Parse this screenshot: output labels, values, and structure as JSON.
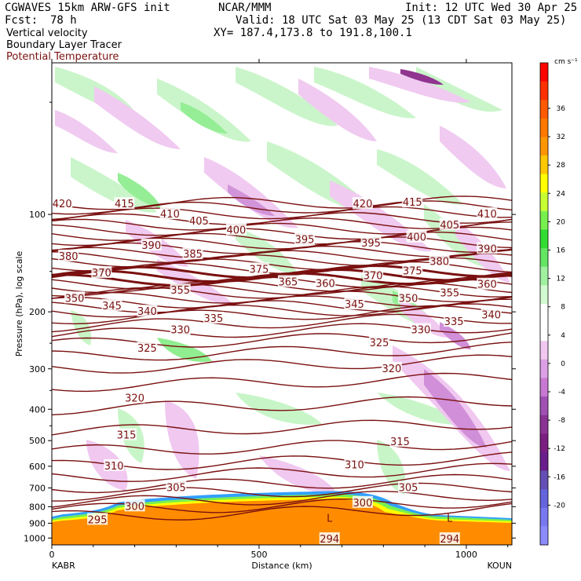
{
  "header": {
    "model": "CGWAVES 15km ARW-GFS init",
    "org": "NCAR/MMM",
    "init": "Init: 12 UTC Wed 30 Apr 25",
    "fcst_label": "Fcst:",
    "fcst_value": "78 h",
    "valid": "Valid: 18 UTC Sat 03 May 25 (13 CDT Sat 03 May 25)",
    "xy": "XY= 187.4,173.8 to 191.8,100.1",
    "field1": "Vertical velocity",
    "field2": "Boundary Layer Tracer",
    "field3": "Potential Temperature"
  },
  "colors": {
    "theta": "#7a1010",
    "terrain": "#ff8c00",
    "up_light": "#c8f5c8",
    "up_mid": "#90ee90",
    "up_strong": "#32cd32",
    "down_light": "#f0c8f0",
    "down_mid": "#d08fd8",
    "down_strong": "#8b2a8b"
  },
  "chart_data": {
    "type": "heatmap",
    "xlabel": "Distance (km)",
    "ylabel": "Pressure (hPa), log scale",
    "x_ticks": [
      "0",
      "500",
      "1000"
    ],
    "x_tick_values": [
      0,
      500,
      1000
    ],
    "x_end_labels": [
      "KABR",
      "KOUN"
    ],
    "xlim": [
      0,
      1110
    ],
    "y_ticks": [
      "100",
      "200",
      "300",
      "400",
      "500",
      "600",
      "700",
      "800",
      "900",
      "1000"
    ],
    "y_tick_values": [
      100,
      200,
      300,
      400,
      500,
      600,
      700,
      800,
      900,
      1000
    ],
    "ylim": [
      1050,
      34
    ],
    "y_scale": "log",
    "colorbar": {
      "units": "cm s⁻¹",
      "tick_labels": [
        "36",
        "32",
        "28",
        "24",
        "20",
        "16",
        "12",
        "8",
        "4",
        "0",
        "-4",
        "-8",
        "-12",
        "-16",
        "-20"
      ],
      "colors": [
        "#ff0000",
        "#ff3000",
        "#ff5a00",
        "#ff7800",
        "#ff9600",
        "#ffc800",
        "#ffff00",
        "#c8ff32",
        "#78f050",
        "#32dc32",
        "#64e664",
        "#a0f0a0",
        "#d2fad2",
        "#ffffff",
        "#ffffff",
        "#f0c8f0",
        "#dca0e6",
        "#c878d2",
        "#a050b4",
        "#8c3296",
        "#7a1e82",
        "#6a1e8c",
        "#6450b4",
        "#6464dc",
        "#7878f0",
        "#8c8cff"
      ]
    },
    "theta_contours": {
      "labels": [
        {
          "text": "420",
          "x": 25,
          "p": 93
        },
        {
          "text": "415",
          "x": 175,
          "p": 93
        },
        {
          "text": "410",
          "x": 285,
          "p": 100
        },
        {
          "text": "405",
          "x": 355,
          "p": 105
        },
        {
          "text": "400",
          "x": 445,
          "p": 112
        },
        {
          "text": "380",
          "x": 40,
          "p": 135
        },
        {
          "text": "390",
          "x": 240,
          "p": 125
        },
        {
          "text": "385",
          "x": 340,
          "p": 133
        },
        {
          "text": "395",
          "x": 610,
          "p": 120
        },
        {
          "text": "375",
          "x": 500,
          "p": 148
        },
        {
          "text": "370",
          "x": 120,
          "p": 152
        },
        {
          "text": "365",
          "x": 570,
          "p": 162
        },
        {
          "text": "360",
          "x": 660,
          "p": 164
        },
        {
          "text": "355",
          "x": 310,
          "p": 172
        },
        {
          "text": "350",
          "x": 55,
          "p": 182
        },
        {
          "text": "345",
          "x": 145,
          "p": 192
        },
        {
          "text": "340",
          "x": 230,
          "p": 200
        },
        {
          "text": "335",
          "x": 390,
          "p": 210
        },
        {
          "text": "330",
          "x": 310,
          "p": 228
        },
        {
          "text": "325",
          "x": 230,
          "p": 260
        },
        {
          "text": "320",
          "x": 200,
          "p": 370
        },
        {
          "text": "315",
          "x": 180,
          "p": 482
        },
        {
          "text": "310",
          "x": 150,
          "p": 600
        },
        {
          "text": "305",
          "x": 300,
          "p": 700
        },
        {
          "text": "300",
          "x": 200,
          "p": 800
        },
        {
          "text": "295",
          "x": 110,
          "p": 880
        },
        {
          "text": "420",
          "x": 750,
          "p": 93
        },
        {
          "text": "415",
          "x": 870,
          "p": 92
        },
        {
          "text": "410",
          "x": 1050,
          "p": 100
        },
        {
          "text": "405",
          "x": 960,
          "p": 108
        },
        {
          "text": "400",
          "x": 880,
          "p": 118
        },
        {
          "text": "395",
          "x": 770,
          "p": 123
        },
        {
          "text": "390",
          "x": 1050,
          "p": 128
        },
        {
          "text": "380",
          "x": 935,
          "p": 140
        },
        {
          "text": "375",
          "x": 870,
          "p": 150
        },
        {
          "text": "370",
          "x": 775,
          "p": 155
        },
        {
          "text": "360",
          "x": 1050,
          "p": 165
        },
        {
          "text": "355",
          "x": 960,
          "p": 175
        },
        {
          "text": "350",
          "x": 860,
          "p": 182
        },
        {
          "text": "345",
          "x": 730,
          "p": 190
        },
        {
          "text": "340",
          "x": 1060,
          "p": 205
        },
        {
          "text": "335",
          "x": 970,
          "p": 215
        },
        {
          "text": "330",
          "x": 890,
          "p": 228
        },
        {
          "text": "325",
          "x": 790,
          "p": 250
        },
        {
          "text": "320",
          "x": 820,
          "p": 300
        },
        {
          "text": "315",
          "x": 840,
          "p": 505
        },
        {
          "text": "310",
          "x": 730,
          "p": 595
        },
        {
          "text": "305",
          "x": 860,
          "p": 700
        },
        {
          "text": "300",
          "x": 750,
          "p": 780
        },
        {
          "text": "294",
          "x": 670,
          "p": 1010
        },
        {
          "text": "294",
          "x": 960,
          "p": 1010
        },
        {
          "text": "L",
          "x": 670,
          "p": 870
        },
        {
          "text": "L",
          "x": 960,
          "p": 870
        }
      ]
    }
  }
}
